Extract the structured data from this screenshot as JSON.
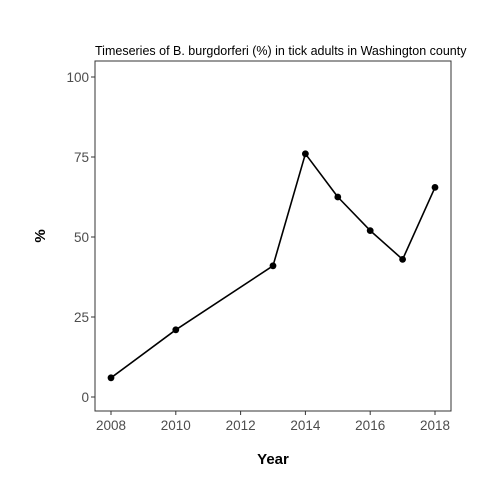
{
  "chart_data": {
    "type": "line",
    "title": "Timeseries of B. burgdorferi (%) in tick adults in Washington county",
    "xlabel": "Year",
    "ylabel": "%",
    "x": [
      2008,
      2010,
      2013,
      2014,
      2015,
      2016,
      2017,
      2018
    ],
    "series": [
      {
        "values": [
          6,
          21,
          41,
          76,
          62.5,
          52,
          43,
          65.5
        ]
      }
    ],
    "xlim": [
      2008,
      2018
    ],
    "ylim": [
      0,
      100
    ],
    "xticks": [
      2008,
      2010,
      2012,
      2014,
      2016,
      2018
    ],
    "yticks": [
      0,
      25,
      50,
      75,
      100
    ],
    "grid": false,
    "legend": "none",
    "colors": {
      "line": "#000000",
      "points": "#000000",
      "frame": "#333333"
    }
  }
}
